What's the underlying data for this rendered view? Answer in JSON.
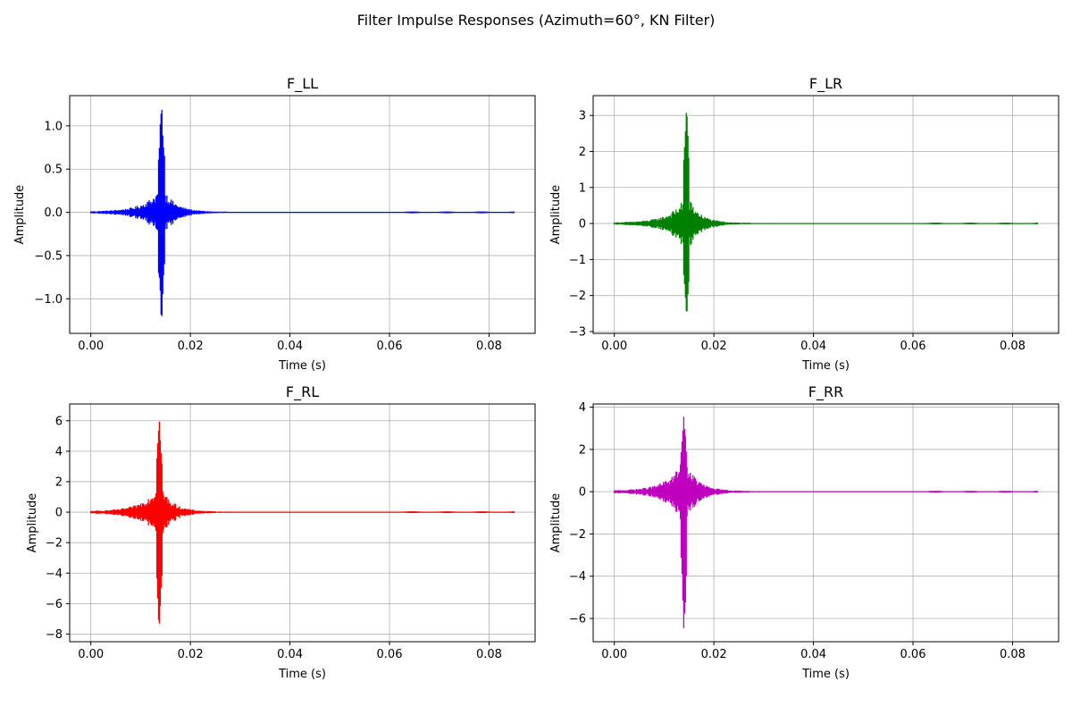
{
  "figure": {
    "title": "Filter Impulse Responses (Azimuth=60°, KN Filter)"
  },
  "chart_data": [
    {
      "type": "line",
      "title": "F_LL",
      "xlabel": "Time (s)",
      "ylabel": "Amplitude",
      "color": "#0000ff",
      "xlim": [
        -0.00425,
        0.08925
      ],
      "ylim": [
        -1.4,
        1.35
      ],
      "xticks": [
        0.0,
        0.02,
        0.04,
        0.06,
        0.08
      ],
      "xtick_labels": [
        "0.00",
        "0.02",
        "0.04",
        "0.06",
        "0.08"
      ],
      "yticks": [
        -1.0,
        -0.5,
        0.0,
        0.5,
        1.0
      ],
      "ytick_labels": [
        "−1.0",
        "−0.5",
        "0.0",
        "0.5",
        "1.0"
      ],
      "grid": true,
      "peak_time": 0.0142,
      "peak_max": 1.24,
      "peak_min": -1.28,
      "duration": 0.085
    },
    {
      "type": "line",
      "title": "F_LR",
      "xlabel": "Time (s)",
      "ylabel": "Amplitude",
      "color": "#008000",
      "xlim": [
        -0.00425,
        0.08925
      ],
      "ylim": [
        -3.05,
        3.55
      ],
      "xticks": [
        0.0,
        0.02,
        0.04,
        0.06,
        0.08
      ],
      "xtick_labels": [
        "0.00",
        "0.02",
        "0.04",
        "0.06",
        "0.08"
      ],
      "yticks": [
        -3,
        -2,
        -1,
        0,
        1,
        2,
        3
      ],
      "ytick_labels": [
        "−3",
        "−2",
        "−1",
        "0",
        "1",
        "2",
        "3"
      ],
      "grid": true,
      "peak_time": 0.0145,
      "peak_max": 3.25,
      "peak_min": -2.75,
      "duration": 0.085
    },
    {
      "type": "line",
      "title": "F_RL",
      "xlabel": "Time (s)",
      "ylabel": "Amplitude",
      "color": "#ff0000",
      "xlim": [
        -0.00425,
        0.08925
      ],
      "ylim": [
        -8.5,
        7.1
      ],
      "xticks": [
        0.0,
        0.02,
        0.04,
        0.06,
        0.08
      ],
      "xtick_labels": [
        "0.00",
        "0.02",
        "0.04",
        "0.06",
        "0.08"
      ],
      "yticks": [
        -8,
        -6,
        -4,
        -2,
        0,
        2,
        4,
        6
      ],
      "ytick_labels": [
        "−8",
        "−6",
        "−4",
        "−2",
        "0",
        "2",
        "4",
        "6"
      ],
      "grid": true,
      "peak_time": 0.0137,
      "peak_max": 6.4,
      "peak_min": -7.8,
      "duration": 0.085
    },
    {
      "type": "line",
      "title": "F_RR",
      "xlabel": "Time (s)",
      "ylabel": "Amplitude",
      "color": "#bf00bf",
      "xlim": [
        -0.00425,
        0.08925
      ],
      "ylim": [
        -7.1,
        4.15
      ],
      "xticks": [
        0.0,
        0.02,
        0.04,
        0.06,
        0.08
      ],
      "xtick_labels": [
        "0.00",
        "0.02",
        "0.04",
        "0.06",
        "0.08"
      ],
      "yticks": [
        -6,
        -4,
        -2,
        0,
        2,
        4
      ],
      "ytick_labels": [
        "−6",
        "−4",
        "−2",
        "0",
        "2",
        "4"
      ],
      "grid": true,
      "peak_time": 0.014,
      "peak_max": 3.6,
      "peak_min": -6.6,
      "duration": 0.085
    }
  ]
}
